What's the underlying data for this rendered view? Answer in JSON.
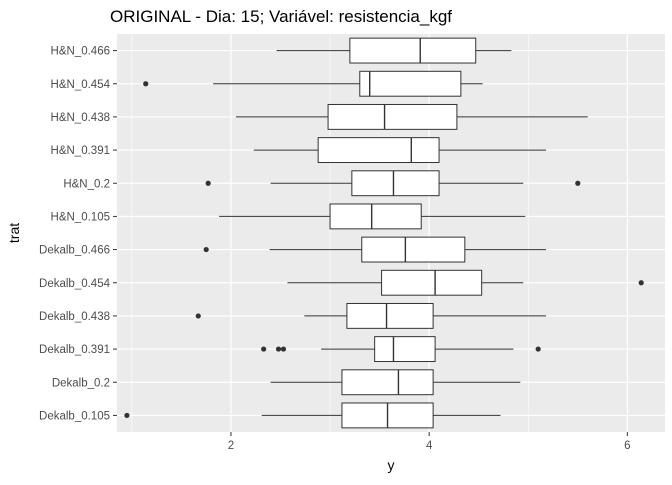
{
  "chart_data": {
    "type": "boxplot",
    "orientation": "horizontal",
    "title": "ORIGINAL - Dia: 15; Variável: resistencia_kgf",
    "xlabel": "y",
    "ylabel": "trat",
    "xlim": [
      0.85,
      6.38
    ],
    "x_ticks": [
      2,
      4,
      6
    ],
    "grid": true,
    "legend": "none",
    "colors": {
      "panel": "#ebebeb",
      "grid_major": "#ffffff",
      "box_fill": "#ffffff",
      "box_line": "#333333",
      "outlier": "#333333",
      "text": "#4d4d4d",
      "title": "#000000"
    },
    "categories": [
      "H&N_0.466",
      "H&N_0.454",
      "H&N_0.438",
      "H&N_0.391",
      "H&N_0.2",
      "H&N_0.105",
      "Dekalb_0.466",
      "Dekalb_0.454",
      "Dekalb_0.438",
      "Dekalb_0.391",
      "Dekalb_0.2",
      "Dekalb_0.105"
    ],
    "boxes": [
      {
        "category": "H&N_0.466",
        "whisker_low": 2.46,
        "q1": 3.2,
        "median": 3.91,
        "q3": 4.47,
        "whisker_high": 4.83,
        "outliers": []
      },
      {
        "category": "H&N_0.454",
        "whisker_low": 1.82,
        "q1": 3.3,
        "median": 3.4,
        "q3": 4.32,
        "whisker_high": 4.54,
        "outliers": [
          1.14
        ]
      },
      {
        "category": "H&N_0.438",
        "whisker_low": 2.05,
        "q1": 2.98,
        "median": 3.55,
        "q3": 4.28,
        "whisker_high": 5.6,
        "outliers": []
      },
      {
        "category": "H&N_0.391",
        "whisker_low": 2.23,
        "q1": 2.88,
        "median": 3.82,
        "q3": 4.1,
        "whisker_high": 5.18,
        "outliers": []
      },
      {
        "category": "H&N_0.2",
        "whisker_low": 2.4,
        "q1": 3.22,
        "median": 3.64,
        "q3": 4.1,
        "whisker_high": 4.95,
        "outliers": [
          1.77,
          5.5
        ]
      },
      {
        "category": "H&N_0.105",
        "whisker_low": 1.88,
        "q1": 3.0,
        "median": 3.42,
        "q3": 3.92,
        "whisker_high": 4.97,
        "outliers": []
      },
      {
        "category": "Dekalb_0.466",
        "whisker_low": 2.39,
        "q1": 3.32,
        "median": 3.76,
        "q3": 4.36,
        "whisker_high": 5.18,
        "outliers": [
          1.75
        ]
      },
      {
        "category": "Dekalb_0.454",
        "whisker_low": 2.57,
        "q1": 3.52,
        "median": 4.06,
        "q3": 4.53,
        "whisker_high": 4.95,
        "outliers": [
          6.14
        ]
      },
      {
        "category": "Dekalb_0.438",
        "whisker_low": 2.74,
        "q1": 3.17,
        "median": 3.57,
        "q3": 4.04,
        "whisker_high": 5.18,
        "outliers": [
          1.67
        ]
      },
      {
        "category": "Dekalb_0.391",
        "whisker_low": 2.91,
        "q1": 3.45,
        "median": 3.64,
        "q3": 4.06,
        "whisker_high": 4.85,
        "outliers": [
          2.33,
          2.48,
          2.53,
          5.1
        ]
      },
      {
        "category": "Dekalb_0.2",
        "whisker_low": 2.4,
        "q1": 3.12,
        "median": 3.69,
        "q3": 4.04,
        "whisker_high": 4.92,
        "outliers": []
      },
      {
        "category": "Dekalb_0.105",
        "whisker_low": 2.31,
        "q1": 3.12,
        "median": 3.58,
        "q3": 4.04,
        "whisker_high": 4.72,
        "outliers": [
          0.95
        ]
      }
    ]
  }
}
